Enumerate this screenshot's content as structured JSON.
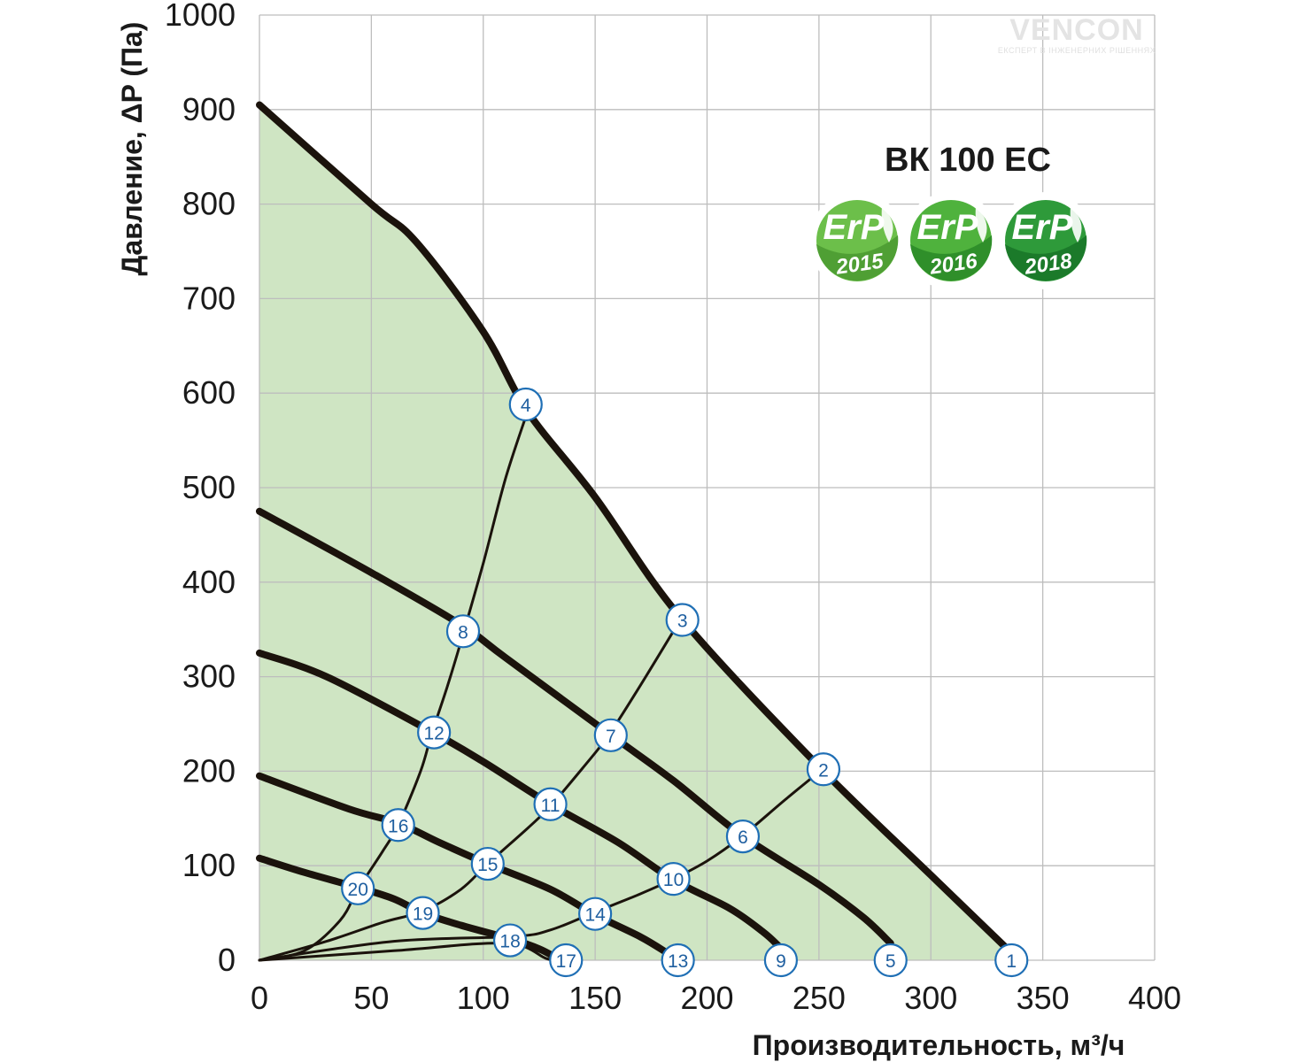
{
  "model_title": "ВК 100 ЕС",
  "brand": {
    "name": "VENCON",
    "tagline": "ЕКСПЕРТ В ІНЖЕНЕРНИХ РІШЕННЯХ"
  },
  "badges": [
    {
      "erp": "ErP",
      "year": "2015",
      "color": "#6cbf4a",
      "dark": "#4f9f34"
    },
    {
      "erp": "ErP",
      "year": "2016",
      "color": "#4fb23d",
      "dark": "#2f8f2a"
    },
    {
      "erp": "ErP",
      "year": "2018",
      "color": "#2e9a3a",
      "dark": "#1b7a2a"
    }
  ],
  "colors": {
    "fill": "#cfe5c3",
    "curve": "#1b130c",
    "grid": "#bdbdbd",
    "marker_stroke": "#1f6fb5",
    "marker_text": "#1f5fa0"
  },
  "chart_data": {
    "type": "line",
    "xlabel": "Производительность, м³/ч",
    "ylabel": "Давление, ΔP (Па)",
    "xlim": [
      0,
      400
    ],
    "ylim": [
      0,
      1000
    ],
    "x_ticks": [
      "0",
      "50",
      "100",
      "150",
      "200",
      "250",
      "300",
      "350",
      "400"
    ],
    "y_ticks": [
      "0",
      "100",
      "200",
      "300",
      "400",
      "500",
      "600",
      "700",
      "800",
      "900",
      "1000"
    ],
    "grid": true,
    "fan_curves": [
      {
        "points": [
          [
            0,
            905
          ],
          [
            50,
            800
          ],
          [
            70,
            760
          ],
          [
            100,
            665
          ],
          [
            120,
            580
          ],
          [
            150,
            490
          ],
          [
            188,
            363
          ],
          [
            250,
            205
          ],
          [
            300,
            90
          ],
          [
            335,
            10
          ]
        ]
      },
      {
        "points": [
          [
            0,
            475
          ],
          [
            50,
            410
          ],
          [
            90,
            355
          ],
          [
            110,
            320
          ],
          [
            156,
            240
          ],
          [
            185,
            190
          ],
          [
            215,
            133
          ],
          [
            250,
            80
          ],
          [
            270,
            45
          ],
          [
            282,
            18
          ]
        ]
      },
      {
        "points": [
          [
            0,
            325
          ],
          [
            30,
            300
          ],
          [
            76,
            243
          ],
          [
            100,
            210
          ],
          [
            130,
            165
          ],
          [
            160,
            125
          ],
          [
            185,
            85
          ],
          [
            210,
            55
          ],
          [
            225,
            30
          ],
          [
            232,
            15
          ]
        ]
      },
      {
        "points": [
          [
            0,
            195
          ],
          [
            40,
            160
          ],
          [
            62,
            145
          ],
          [
            80,
            125
          ],
          [
            102,
            102
          ],
          [
            130,
            75
          ],
          [
            150,
            48
          ],
          [
            170,
            25
          ],
          [
            182,
            8
          ]
        ]
      },
      {
        "points": [
          [
            0,
            108
          ],
          [
            20,
            93
          ],
          [
            44,
            77
          ],
          [
            60,
            65
          ],
          [
            73,
            50
          ],
          [
            90,
            37
          ],
          [
            113,
            22
          ],
          [
            125,
            12
          ],
          [
            133,
            2
          ]
        ]
      }
    ],
    "system_curves": [
      {
        "points": [
          [
            0,
            0
          ],
          [
            20,
            10
          ],
          [
            36,
            42
          ],
          [
            44,
            75
          ],
          [
            55,
            115
          ],
          [
            62,
            143
          ],
          [
            72,
            200
          ],
          [
            77,
            240
          ],
          [
            84,
            290
          ],
          [
            91,
            345
          ],
          [
            100,
            420
          ],
          [
            110,
            510
          ],
          [
            120,
            582
          ]
        ]
      },
      {
        "points": [
          [
            0,
            0
          ],
          [
            30,
            20
          ],
          [
            55,
            40
          ],
          [
            73,
            52
          ],
          [
            90,
            75
          ],
          [
            102,
            102
          ],
          [
            120,
            140
          ],
          [
            130,
            163
          ],
          [
            145,
            205
          ],
          [
            156,
            238
          ],
          [
            170,
            290
          ],
          [
            188,
            360
          ]
        ]
      },
      {
        "points": [
          [
            0,
            0
          ],
          [
            60,
            20
          ],
          [
            113,
            25
          ],
          [
            130,
            32
          ],
          [
            149,
            50
          ],
          [
            170,
            70
          ],
          [
            185,
            86
          ],
          [
            200,
            105
          ],
          [
            215,
            130
          ],
          [
            235,
            170
          ],
          [
            252,
            203
          ]
        ]
      },
      {
        "points": [
          [
            0,
            0
          ],
          [
            60,
            10
          ],
          [
            110,
            18
          ],
          [
            128,
            2
          ],
          [
            133,
            0
          ]
        ]
      }
    ],
    "markers": [
      {
        "label": "1",
        "x": 336,
        "y": 0
      },
      {
        "label": "2",
        "x": 252,
        "y": 202
      },
      {
        "label": "3",
        "x": 189,
        "y": 360
      },
      {
        "label": "4",
        "x": 119,
        "y": 588
      },
      {
        "label": "5",
        "x": 282,
        "y": 0
      },
      {
        "label": "6",
        "x": 216,
        "y": 131
      },
      {
        "label": "7",
        "x": 157,
        "y": 238
      },
      {
        "label": "8",
        "x": 91,
        "y": 348
      },
      {
        "label": "9",
        "x": 233,
        "y": 0
      },
      {
        "label": "10",
        "x": 185,
        "y": 86
      },
      {
        "label": "11",
        "x": 130,
        "y": 165
      },
      {
        "label": "12",
        "x": 78,
        "y": 241
      },
      {
        "label": "13",
        "x": 187,
        "y": 0
      },
      {
        "label": "14",
        "x": 150,
        "y": 49
      },
      {
        "label": "15",
        "x": 102,
        "y": 102
      },
      {
        "label": "16",
        "x": 62,
        "y": 143
      },
      {
        "label": "17",
        "x": 137,
        "y": 0
      },
      {
        "label": "18",
        "x": 112,
        "y": 21
      },
      {
        "label": "19",
        "x": 73,
        "y": 50
      },
      {
        "label": "20",
        "x": 44,
        "y": 76
      }
    ]
  }
}
